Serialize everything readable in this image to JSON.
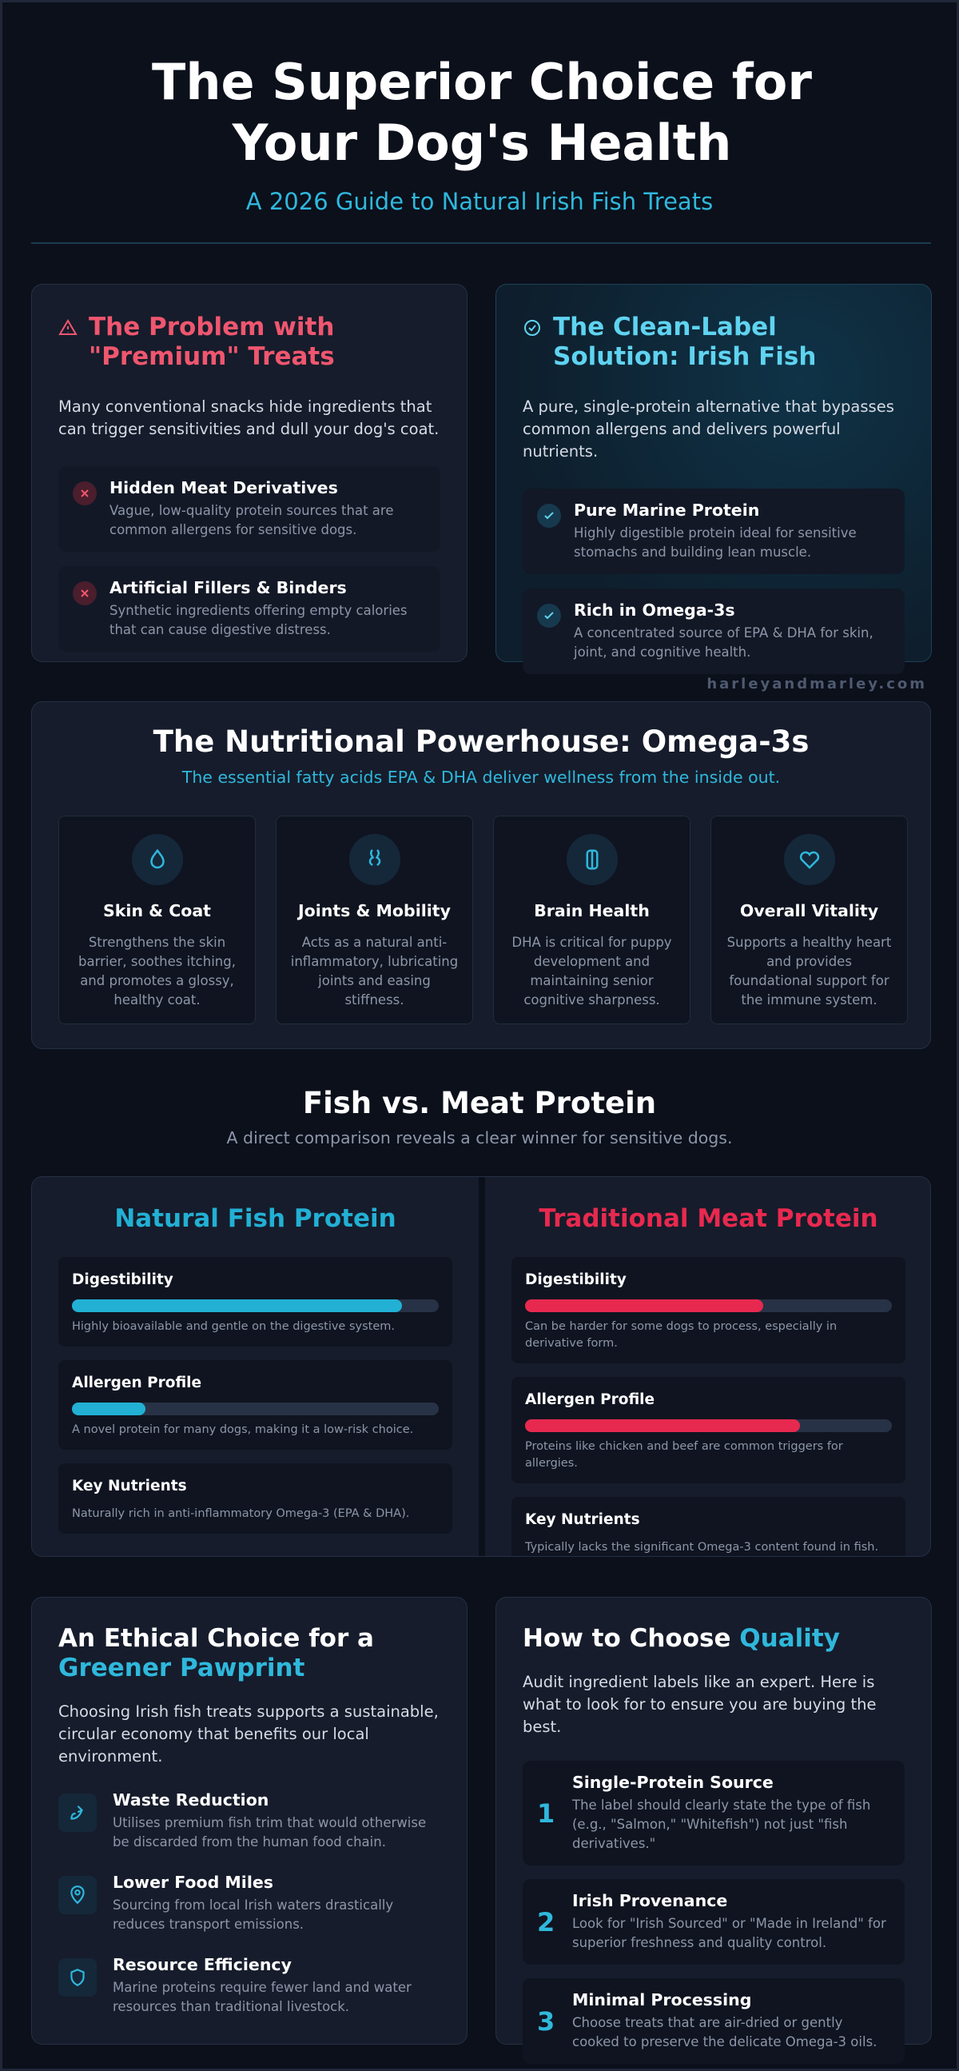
{
  "header": {
    "title": "The Superior Choice for Your Dog's Health",
    "subtitle": "A 2026 Guide to Natural Irish Fish Treats"
  },
  "problem": {
    "title": "The Problem with \"Premium\" Treats",
    "intro": "Many conventional snacks hide ingredients that can trigger sensitivities and dull your dog's coat.",
    "items": [
      {
        "title": "Hidden Meat Derivatives",
        "desc": "Vague, low-quality protein sources that are common allergens for sensitive dogs."
      },
      {
        "title": "Artificial Fillers & Binders",
        "desc": "Synthetic ingredients offering empty calories that can cause digestive distress."
      }
    ]
  },
  "solution": {
    "title": "The Clean-Label Solution: Irish Fish",
    "intro": "A pure, single-protein alternative that bypasses common allergens and delivers powerful nutrients.",
    "items": [
      {
        "title": "Pure Marine Protein",
        "desc": "Highly digestible protein ideal for sensitive stomachs and building lean muscle."
      },
      {
        "title": "Rich in Omega-3s",
        "desc": "A concentrated source of EPA & DHA for skin, joint, and cognitive health."
      }
    ]
  },
  "watermark": "harleyandmarley.com",
  "omega": {
    "title": "The Nutritional Powerhouse: Omega-3s",
    "subtitle": "The essential fatty acids EPA & DHA deliver wellness from the inside out.",
    "cards": [
      {
        "title": "Skin & Coat",
        "desc": "Strengthens the skin barrier, soothes itching, and promotes a glossy, healthy coat."
      },
      {
        "title": "Joints & Mobility",
        "desc": "Acts as a natural anti-inflammatory, lubricating joints and easing stiffness."
      },
      {
        "title": "Brain Health",
        "desc": "DHA is critical for puppy development and maintaining senior cognitive sharpness."
      },
      {
        "title": "Overall Vitality",
        "desc": "Supports a healthy heart and provides foundational support for the immune system."
      }
    ]
  },
  "comparison": {
    "title": "Fish vs. Meat Protein",
    "subtitle": "A direct comparison reveals a clear winner for sensitive dogs.",
    "xlim": [
      0,
      100
    ],
    "fish": {
      "title": "Natural Fish Protein",
      "color": "#22b0d4",
      "metrics": [
        {
          "label": "Digestibility",
          "value": 90,
          "desc": "Highly bioavailable and gentle on the digestive system."
        },
        {
          "label": "Allergen Profile",
          "value": 20,
          "desc": "A novel protein for many dogs, making it a low-risk choice."
        },
        {
          "label": "Key Nutrients",
          "desc": "Naturally rich in anti-inflammatory Omega-3 (EPA & DHA)."
        }
      ]
    },
    "meat": {
      "title": "Traditional Meat Protein",
      "color": "#e8294f",
      "metrics": [
        {
          "label": "Digestibility",
          "value": 65,
          "desc": "Can be harder for some dogs to process, especially in derivative form."
        },
        {
          "label": "Allergen Profile",
          "value": 75,
          "desc": "Proteins like chicken and beef are common triggers for allergies."
        },
        {
          "label": "Key Nutrients",
          "desc": "Typically lacks the significant Omega-3 content found in fish."
        }
      ]
    }
  },
  "ethical": {
    "title_start": "An Ethical Choice for a",
    "title_highlight": "Greener Pawprint",
    "intro": "Choosing Irish fish treats supports a sustainable, circular economy that benefits our local environment.",
    "items": [
      {
        "title": "Waste Reduction",
        "desc": "Utilises premium fish trim that would otherwise be discarded from the human food chain."
      },
      {
        "title": "Lower Food Miles",
        "desc": "Sourcing from local Irish waters drastically reduces transport emissions."
      },
      {
        "title": "Resource Efficiency",
        "desc": "Marine proteins require fewer land and water resources than traditional livestock."
      }
    ]
  },
  "choose": {
    "title_start": "How to Choose",
    "title_highlight": "Quality",
    "intro": "Audit ingredient labels like an expert. Here is what to look for to ensure you are buying the best.",
    "steps": [
      {
        "number": 1,
        "title": "Single-Protein Source",
        "desc": "The label should clearly state the type of fish (e.g., \"Salmon,\" \"Whitefish\") not just \"fish derivatives.\""
      },
      {
        "number": 2,
        "title": "Irish Provenance",
        "desc": "Look for \"Irish Sourced\" or \"Made in Ireland\" for superior freshness and quality control."
      },
      {
        "number": 3,
        "title": "Minimal Processing",
        "desc": "Choose treats that are air-dried or gently cooked to preserve the delicate Omega-3 oils."
      }
    ]
  }
}
